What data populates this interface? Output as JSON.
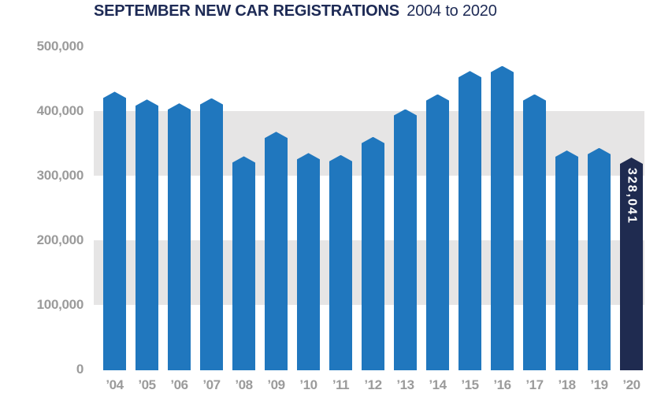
{
  "title": {
    "main": "SEPTEMBER NEW CAR REGISTRATIONS",
    "sub": "2004 to 2020"
  },
  "colors": {
    "bar_blue": "#2077be",
    "bar_highlight_navy": "#1f2b50",
    "band_gray": "#e6e5e5",
    "axis_text_gray": "#9b9b9b",
    "title_navy": "#1d2a55",
    "highlight_label_text": "#ffffff"
  },
  "chart_data": {
    "type": "bar",
    "title": "SEPTEMBER NEW CAR REGISTRATIONS 2004 to 2020",
    "xlabel": "",
    "ylabel": "",
    "ylim": [
      0,
      500000
    ],
    "grid": false,
    "legend": false,
    "y_ticks": [
      {
        "label": "500,000",
        "value": 500000
      },
      {
        "label": "400,000",
        "value": 400000
      },
      {
        "label": "300,000",
        "value": 300000
      },
      {
        "label": "200,000",
        "value": 200000
      },
      {
        "label": "100,000",
        "value": 100000
      },
      {
        "label": "0",
        "value": 0
      }
    ],
    "background_bands": [
      {
        "from": 300000,
        "to": 400000
      },
      {
        "from": 100000,
        "to": 200000
      }
    ],
    "categories": [
      "’04",
      "’05",
      "’06",
      "’07",
      "’08",
      "’09",
      "’10",
      "’11",
      "’12",
      "’13",
      "’14",
      "’15",
      "’16",
      "’17",
      "’18",
      "’19",
      "’20"
    ],
    "years": [
      2004,
      2005,
      2006,
      2007,
      2008,
      2009,
      2010,
      2011,
      2012,
      2013,
      2014,
      2015,
      2016,
      2017,
      2018,
      2019,
      2020
    ],
    "values": [
      430000,
      418000,
      412000,
      420000,
      330000,
      368000,
      335000,
      332000,
      360000,
      403000,
      426000,
      462000,
      470000,
      426000,
      339000,
      343000,
      328041
    ],
    "highlight": {
      "index": 16,
      "label": "328,041"
    }
  }
}
